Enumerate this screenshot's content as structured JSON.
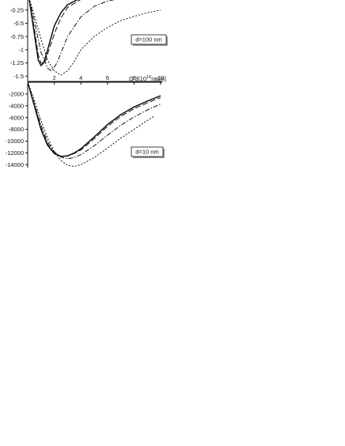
{
  "chart_data": [
    {
      "type": "line",
      "annotation": "d=100 nm",
      "xlabel": "Ω 3[10",
      "xlabel_exp": "16",
      "xlabel_unit": "rad/s]",
      "xlim": [
        0,
        10
      ],
      "ylim": [
        -1.6,
        0
      ],
      "yticks": [
        -0.25,
        -0.5,
        -0.75,
        -1,
        -1.25,
        -1.5
      ],
      "ytick_labels": [
        "-0.25",
        "-0.5",
        "-0.75",
        "-1",
        "-1.25",
        "-1.5"
      ],
      "series": [
        {
          "style": "solid",
          "x": [
            0.1,
            0.5,
            0.8,
            1.0,
            1.2,
            1.5,
            2.0,
            2.5,
            3,
            4,
            5,
            6,
            7
          ],
          "y": [
            -0.02,
            -0.7,
            -1.2,
            -1.3,
            -1.25,
            -1.0,
            -0.55,
            -0.3,
            -0.15,
            -0.02,
            0,
            0,
            0
          ]
        },
        {
          "style": "longdash",
          "x": [
            0.1,
            0.5,
            0.8,
            1.0,
            1.3,
            1.6,
            2.0,
            2.5,
            3,
            4,
            5,
            6,
            7
          ],
          "y": [
            -0.02,
            -0.6,
            -1.1,
            -1.25,
            -1.25,
            -1.0,
            -0.7,
            -0.4,
            -0.2,
            -0.05,
            0,
            0,
            0
          ]
        },
        {
          "style": "dashdot",
          "x": [
            0.1,
            0.5,
            1.0,
            1.5,
            1.8,
            2.2,
            2.6,
            3,
            4,
            5,
            6,
            7,
            8,
            9
          ],
          "y": [
            -0.02,
            -0.45,
            -1.05,
            -1.35,
            -1.4,
            -1.25,
            -1.0,
            -0.75,
            -0.38,
            -0.18,
            -0.08,
            -0.03,
            -0.01,
            0
          ]
        },
        {
          "style": "dotted",
          "x": [
            0.1,
            0.5,
            1.0,
            1.5,
            2.0,
            2.5,
            3.0,
            3.5,
            4,
            5,
            6,
            7,
            8,
            9,
            10
          ],
          "y": [
            -0.02,
            -0.35,
            -0.8,
            -1.2,
            -1.4,
            -1.48,
            -1.4,
            -1.22,
            -1.0,
            -0.75,
            -0.58,
            -0.45,
            -0.37,
            -0.3,
            -0.25
          ]
        }
      ]
    },
    {
      "type": "line",
      "annotation": "d=10 nm",
      "xlim": [
        0,
        10
      ],
      "ylim": [
        -14500,
        0
      ],
      "xticks": [
        2,
        4,
        6,
        8,
        10
      ],
      "xtick_labels": [
        "2",
        "4",
        "6",
        "8",
        "10"
      ],
      "yticks": [
        -2000,
        -4000,
        -6000,
        -8000,
        -10000,
        -12000,
        -14000
      ],
      "ytick_labels": [
        "-2000",
        "-4000",
        "-6000",
        "-8000",
        "-10000",
        "-12000",
        "-14000"
      ],
      "series": [
        {
          "style": "solid",
          "x": [
            0,
            0.5,
            1,
            1.5,
            2,
            2.5,
            3,
            3.5,
            4,
            5,
            6,
            7,
            8,
            9,
            10
          ],
          "y": [
            0,
            -4000,
            -8000,
            -10700,
            -12100,
            -12600,
            -12500,
            -12000,
            -11300,
            -9300,
            -7200,
            -5500,
            -4200,
            -3200,
            -2300
          ]
        },
        {
          "style": "longdash",
          "x": [
            0,
            0.5,
            1,
            1.5,
            2,
            2.5,
            3,
            3.5,
            4,
            5,
            6,
            7,
            8,
            9,
            10
          ],
          "y": [
            0,
            -3900,
            -7800,
            -10500,
            -12000,
            -12550,
            -12550,
            -12100,
            -11500,
            -9600,
            -7500,
            -5800,
            -4500,
            -3500,
            -2600
          ]
        },
        {
          "style": "dashdot",
          "x": [
            0,
            0.5,
            1,
            1.5,
            2,
            2.5,
            3,
            3.5,
            4,
            5,
            6,
            7,
            8,
            9,
            10
          ],
          "y": [
            0,
            -3600,
            -7300,
            -10100,
            -11800,
            -12700,
            -13000,
            -12800,
            -12300,
            -10800,
            -9000,
            -7300,
            -5900,
            -4700,
            -3700
          ]
        },
        {
          "style": "dotted",
          "x": [
            0,
            0.5,
            1,
            1.5,
            2,
            2.5,
            3,
            3.5,
            4,
            5,
            6,
            7,
            8,
            9,
            9.5
          ],
          "y": [
            0,
            -3000,
            -6500,
            -9500,
            -11800,
            -13300,
            -14100,
            -14300,
            -14000,
            -12800,
            -11200,
            -9500,
            -8000,
            -6500,
            -5800
          ]
        }
      ]
    }
  ]
}
